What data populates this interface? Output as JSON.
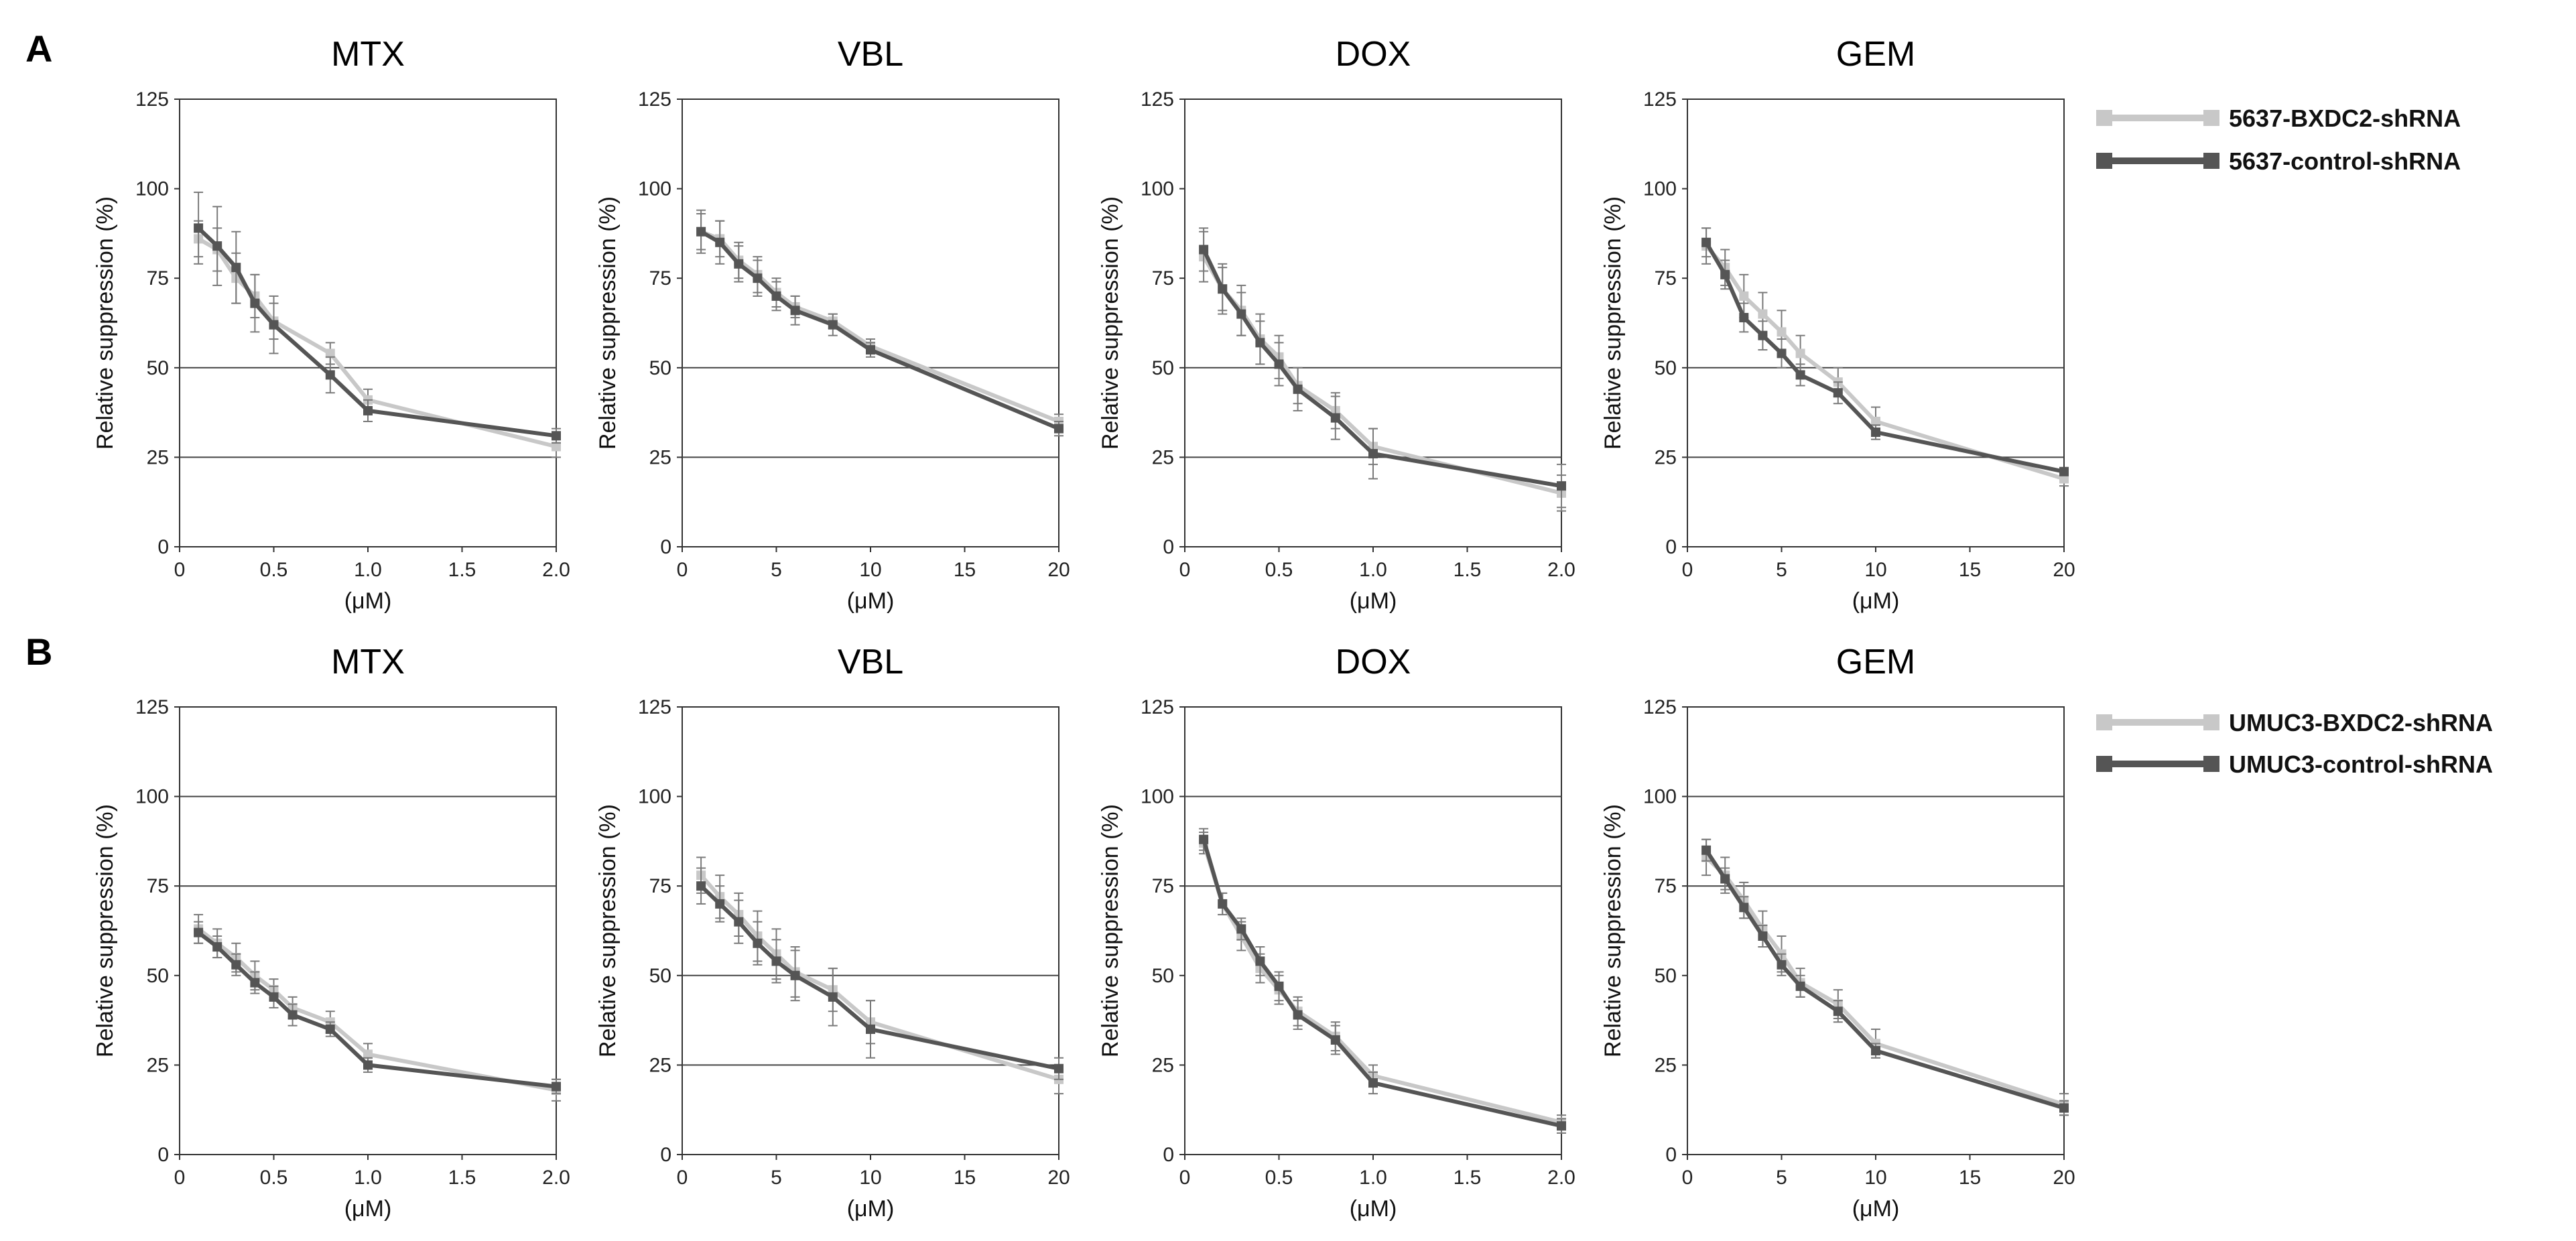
{
  "figure": {
    "panels": [
      {
        "letter": "A",
        "legend": [
          "5637-BXDC2-shRNA",
          "5637-control-shRNA"
        ]
      },
      {
        "letter": "B",
        "legend": [
          "UMUC3-BXDC2-shRNA",
          "UMUC3-control-shRNA"
        ]
      }
    ],
    "colors": {
      "bxdc2": "#c8c8c8",
      "control": "#555555",
      "grid": "#444444",
      "error": "#7a7a7a"
    }
  },
  "chart_data": [
    {
      "type": "line",
      "panel": "A",
      "title": "MTX",
      "xlabel": "(μM)",
      "ylabel": "Relative suppression (%)",
      "xlim": [
        0,
        2
      ],
      "ylim": [
        0,
        125
      ],
      "xticks": [
        "0",
        "0.5",
        "1.0",
        "1.5",
        "2.0"
      ],
      "yticks": [
        "0",
        "25",
        "50",
        "75",
        "100",
        "125"
      ],
      "gridlines": [
        25,
        50
      ],
      "x": [
        0.1,
        0.2,
        0.3,
        0.4,
        0.5,
        0.8,
        1.0,
        2.0
      ],
      "series": [
        {
          "name": "5637-BXDC2-shRNA",
          "values": [
            86,
            83,
            75,
            70,
            63,
            54,
            41,
            28
          ],
          "errors": [
            5,
            6,
            7,
            6,
            5,
            3,
            3,
            3
          ]
        },
        {
          "name": "5637-control-shRNA",
          "values": [
            89,
            84,
            78,
            68,
            62,
            48,
            38,
            31
          ],
          "errors": [
            10,
            11,
            10,
            8,
            8,
            5,
            3,
            2
          ]
        }
      ]
    },
    {
      "type": "line",
      "panel": "A",
      "title": "VBL",
      "xlabel": "(μM)",
      "ylabel": "Relative suppression (%)",
      "xlim": [
        0,
        20
      ],
      "ylim": [
        0,
        125
      ],
      "xticks": [
        "0",
        "5",
        "10",
        "15",
        "20"
      ],
      "yticks": [
        "0",
        "25",
        "50",
        "75",
        "100",
        "125"
      ],
      "gridlines": [
        25,
        50
      ],
      "x": [
        1,
        2,
        3,
        4,
        5,
        6,
        8,
        10,
        20
      ],
      "series": [
        {
          "name": "5637-BXDC2-shRNA",
          "values": [
            88,
            86,
            80,
            76,
            71,
            67,
            63,
            56,
            35
          ],
          "errors": [
            5,
            5,
            5,
            5,
            4,
            3,
            2,
            2,
            2
          ]
        },
        {
          "name": "5637-control-shRNA",
          "values": [
            88,
            85,
            79,
            75,
            70,
            66,
            62,
            55,
            33
          ],
          "errors": [
            6,
            6,
            5,
            5,
            4,
            4,
            3,
            2,
            2
          ]
        }
      ]
    },
    {
      "type": "line",
      "panel": "A",
      "title": "DOX",
      "xlabel": "(μM)",
      "ylabel": "Relative suppression (%)",
      "xlim": [
        0,
        2
      ],
      "ylim": [
        0,
        125
      ],
      "xticks": [
        "0",
        "0.5",
        "1.0",
        "1.5",
        "2.0"
      ],
      "yticks": [
        "0",
        "25",
        "50",
        "75",
        "100",
        "125"
      ],
      "gridlines": [
        25,
        50
      ],
      "x": [
        0.1,
        0.2,
        0.3,
        0.4,
        0.5,
        0.6,
        0.8,
        1.0,
        2.0
      ],
      "series": [
        {
          "name": "5637-BXDC2-shRNA",
          "values": [
            81,
            72,
            66,
            58,
            53,
            45,
            38,
            28,
            15
          ],
          "errors": [
            7,
            7,
            7,
            7,
            6,
            5,
            5,
            5,
            5
          ]
        },
        {
          "name": "5637-control-shRNA",
          "values": [
            83,
            72,
            65,
            57,
            51,
            44,
            36,
            26,
            17
          ],
          "errors": [
            6,
            6,
            6,
            6,
            6,
            6,
            6,
            7,
            6
          ]
        }
      ]
    },
    {
      "type": "line",
      "panel": "A",
      "title": "GEM",
      "xlabel": "(μM)",
      "ylabel": "Relative suppression (%)",
      "xlim": [
        0,
        20
      ],
      "ylim": [
        0,
        125
      ],
      "xticks": [
        "0",
        "5",
        "10",
        "15",
        "20"
      ],
      "yticks": [
        "0",
        "25",
        "50",
        "75",
        "100",
        "125"
      ],
      "gridlines": [
        25,
        50
      ],
      "x": [
        1,
        2,
        3,
        4,
        5,
        6,
        8,
        10,
        20
      ],
      "series": [
        {
          "name": "5637-BXDC2-shRNA",
          "values": [
            84,
            78,
            70,
            65,
            60,
            54,
            46,
            35,
            19
          ],
          "errors": [
            5,
            5,
            6,
            6,
            6,
            5,
            4,
            4,
            2
          ]
        },
        {
          "name": "5637-control-shRNA",
          "values": [
            85,
            76,
            64,
            59,
            54,
            48,
            43,
            32,
            21
          ],
          "errors": [
            4,
            4,
            4,
            4,
            4,
            3,
            3,
            2,
            1
          ]
        }
      ]
    },
    {
      "type": "line",
      "panel": "B",
      "title": "MTX",
      "xlabel": "(μM)",
      "ylabel": "Relative suppression (%)",
      "xlim": [
        0,
        2
      ],
      "ylim": [
        0,
        125
      ],
      "xticks": [
        "0",
        "0.5",
        "1.0",
        "1.5",
        "2.0"
      ],
      "yticks": [
        "0",
        "25",
        "50",
        "75",
        "100",
        "125"
      ],
      "gridlines": [
        75,
        100
      ],
      "x": [
        0.1,
        0.2,
        0.3,
        0.4,
        0.5,
        0.6,
        0.8,
        1.0,
        2.0
      ],
      "series": [
        {
          "name": "UMUC3-BXDC2-shRNA",
          "values": [
            63,
            59,
            55,
            50,
            46,
            41,
            37,
            28,
            18
          ],
          "errors": [
            4,
            4,
            4,
            4,
            3,
            3,
            3,
            3,
            3
          ]
        },
        {
          "name": "UMUC3-control-shRNA",
          "values": [
            62,
            58,
            53,
            48,
            44,
            39,
            35,
            25,
            19
          ],
          "errors": [
            3,
            3,
            3,
            3,
            3,
            3,
            2,
            2,
            2
          ]
        }
      ]
    },
    {
      "type": "line",
      "panel": "B",
      "title": "VBL",
      "xlabel": "(μM)",
      "ylabel": "Relative suppression (%)",
      "xlim": [
        0,
        20
      ],
      "ylim": [
        0,
        125
      ],
      "xticks": [
        "0",
        "5",
        "10",
        "15",
        "20"
      ],
      "yticks": [
        "0",
        "25",
        "50",
        "75",
        "100",
        "125"
      ],
      "gridlines": [
        25,
        50
      ],
      "x": [
        1,
        2,
        3,
        4,
        5,
        6,
        8,
        10,
        20
      ],
      "series": [
        {
          "name": "UMUC3-BXDC2-shRNA",
          "values": [
            78,
            72,
            67,
            61,
            56,
            51,
            46,
            37,
            21
          ],
          "errors": [
            5,
            6,
            6,
            7,
            7,
            7,
            6,
            6,
            4
          ]
        },
        {
          "name": "UMUC3-control-shRNA",
          "values": [
            75,
            70,
            65,
            59,
            54,
            50,
            44,
            35,
            24
          ],
          "errors": [
            5,
            5,
            6,
            6,
            6,
            7,
            8,
            8,
            3
          ]
        }
      ]
    },
    {
      "type": "line",
      "panel": "B",
      "title": "DOX",
      "xlabel": "(μM)",
      "ylabel": "Relative suppression (%)",
      "xlim": [
        0,
        2
      ],
      "ylim": [
        0,
        125
      ],
      "xticks": [
        "0",
        "0.5",
        "1.0",
        "1.5",
        "2.0"
      ],
      "yticks": [
        "0",
        "25",
        "50",
        "75",
        "100",
        "125"
      ],
      "gridlines": [
        75,
        100
      ],
      "x": [
        0.1,
        0.2,
        0.3,
        0.4,
        0.5,
        0.6,
        0.8,
        1.0,
        2.0
      ],
      "series": [
        {
          "name": "UMUC3-BXDC2-shRNA",
          "values": [
            87,
            70,
            61,
            52,
            46,
            40,
            33,
            22,
            9
          ],
          "errors": [
            3,
            3,
            4,
            4,
            4,
            4,
            4,
            3,
            2
          ]
        },
        {
          "name": "UMUC3-control-shRNA",
          "values": [
            88,
            70,
            63,
            54,
            47,
            39,
            32,
            20,
            8
          ],
          "errors": [
            3,
            3,
            3,
            4,
            4,
            4,
            4,
            3,
            2
          ]
        }
      ]
    },
    {
      "type": "line",
      "panel": "B",
      "title": "GEM",
      "xlabel": "(μM)",
      "ylabel": "Relative suppression (%)",
      "xlim": [
        0,
        20
      ],
      "ylim": [
        0,
        125
      ],
      "xticks": [
        "0",
        "5",
        "10",
        "15",
        "20"
      ],
      "yticks": [
        "0",
        "25",
        "50",
        "75",
        "100",
        "125"
      ],
      "gridlines": [
        75,
        100
      ],
      "x": [
        1,
        2,
        3,
        4,
        5,
        6,
        8,
        10,
        20
      ],
      "series": [
        {
          "name": "UMUC3-BXDC2-shRNA",
          "values": [
            83,
            78,
            71,
            63,
            56,
            48,
            42,
            31,
            14
          ],
          "errors": [
            5,
            5,
            5,
            5,
            5,
            4,
            4,
            4,
            3
          ]
        },
        {
          "name": "UMUC3-control-shRNA",
          "values": [
            85,
            77,
            69,
            61,
            53,
            47,
            40,
            29,
            13
          ],
          "errors": [
            3,
            3,
            3,
            3,
            3,
            3,
            3,
            2,
            2
          ]
        }
      ]
    }
  ]
}
